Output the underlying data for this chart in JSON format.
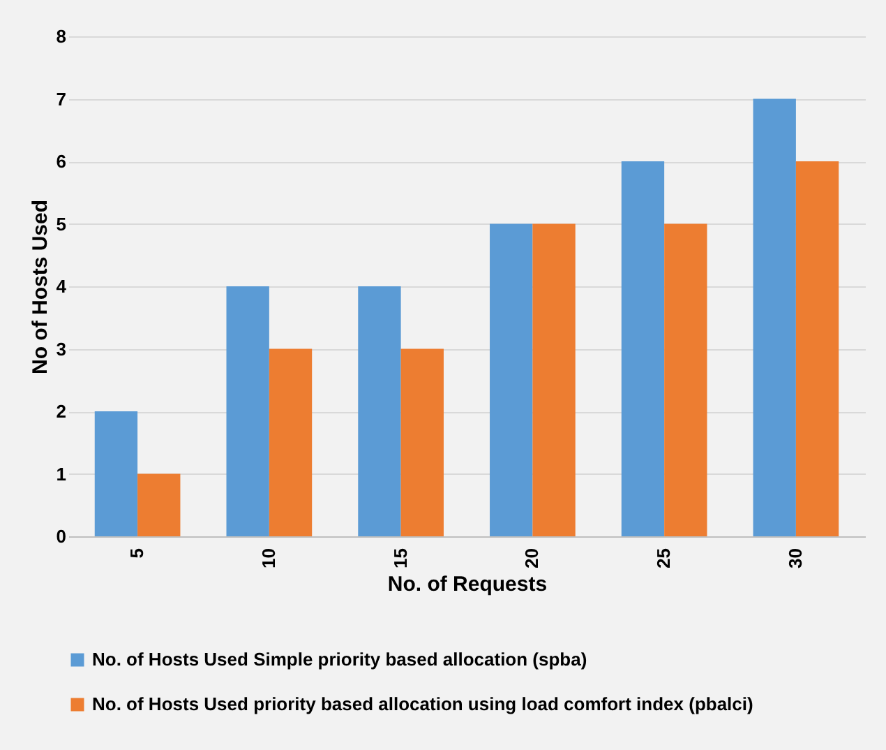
{
  "chart_data": {
    "type": "bar",
    "xlabel": "No. of Requests",
    "ylabel": "No of Hosts Used",
    "categories": [
      "5",
      "10",
      "15",
      "20",
      "25",
      "30"
    ],
    "series": [
      {
        "name": "No. of Hosts Used Simple priority based allocation (spba)",
        "color": "#5b9bd5",
        "values": [
          2,
          4,
          4,
          5,
          6,
          7
        ]
      },
      {
        "name": "No. of Hosts Used priority based allocation using load comfort index (pbalci)",
        "color": "#ed7d31",
        "values": [
          1,
          3,
          3,
          5,
          5,
          6
        ]
      }
    ],
    "ylim": [
      0,
      8
    ],
    "yticks": [
      0,
      1,
      2,
      3,
      4,
      5,
      6,
      7,
      8
    ],
    "grid": "y",
    "legend": "bottom"
  }
}
